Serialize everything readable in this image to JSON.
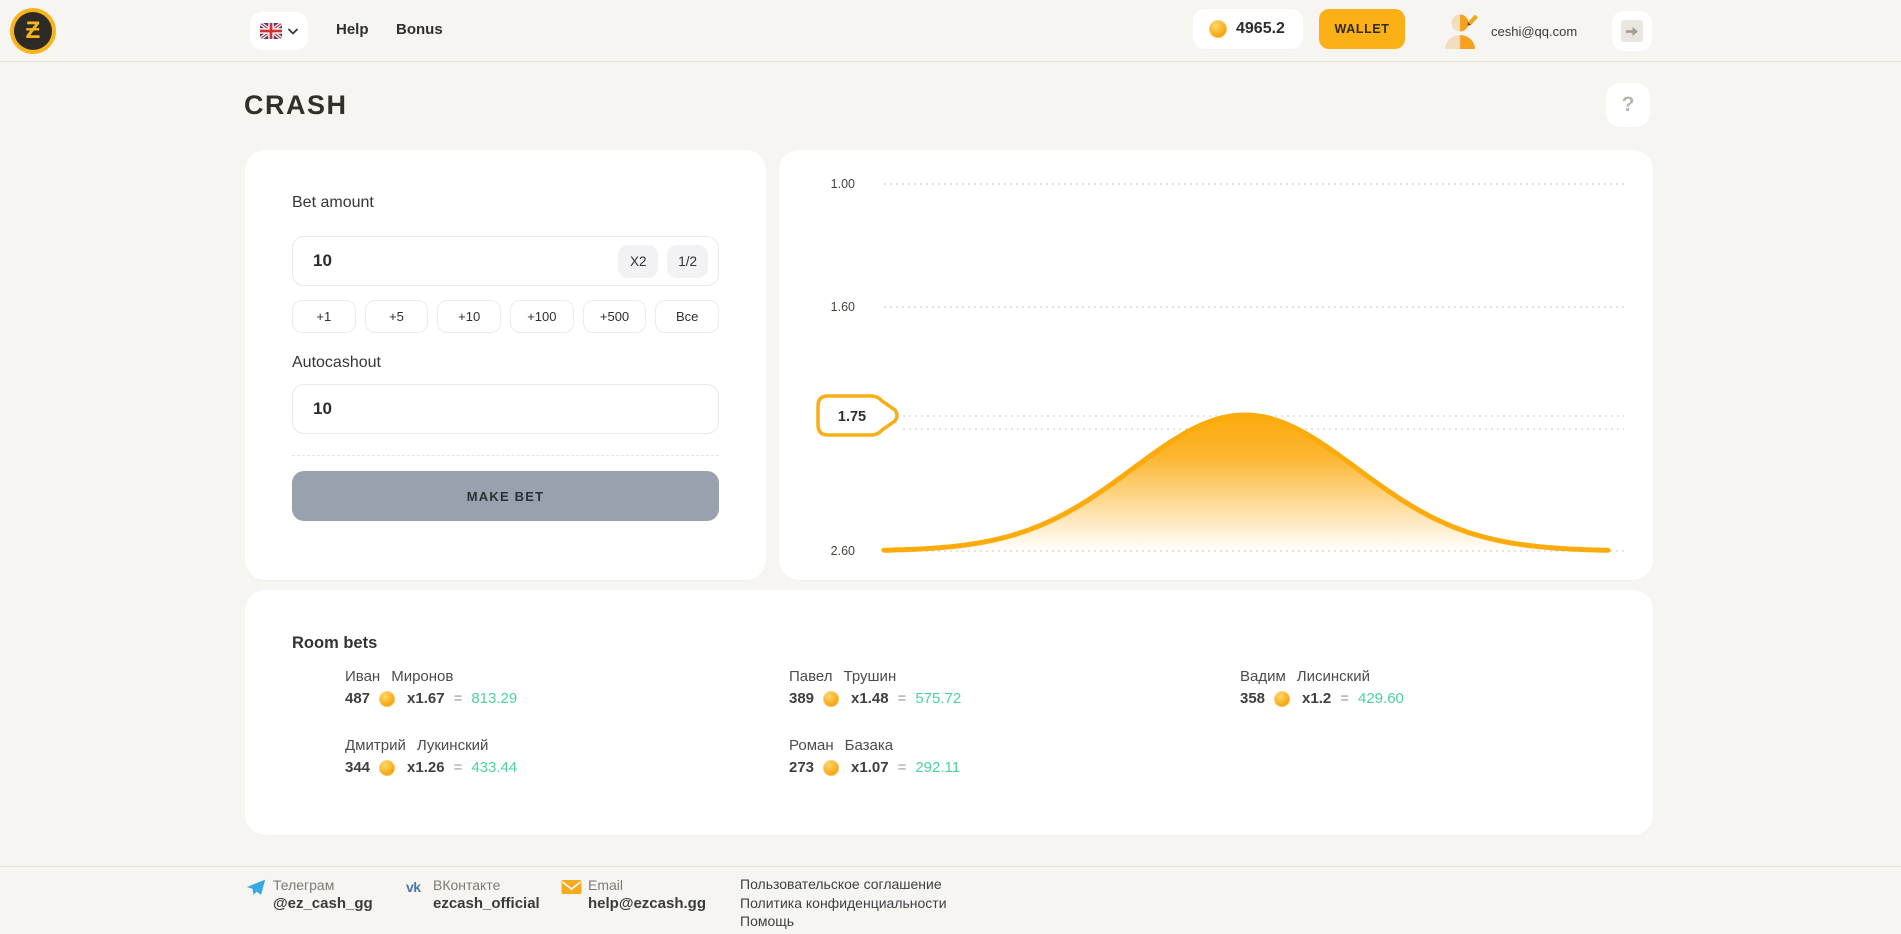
{
  "header": {
    "logo_glyph": "Ƶ",
    "nav": {
      "help": "Help",
      "bonus": "Bonus"
    },
    "balance": {
      "amount": "4965.2"
    },
    "wallet_button": "WALLET",
    "user": {
      "email": "ceshi@qq.com"
    }
  },
  "page": {
    "title": "CRASH",
    "help_button": "?"
  },
  "bet_panel": {
    "bet_amount_label": "Bet amount",
    "bet_amount_value": "10",
    "multiplier_chips": [
      "X2",
      "1/2"
    ],
    "quick_add_buttons": [
      "+1",
      "+5",
      "+10",
      "+100",
      "+500",
      "Все"
    ],
    "autocashout_label": "Autocashout",
    "autocashout_value": "10",
    "make_bet_button": "MAKE BET"
  },
  "chart_data": {
    "type": "area",
    "curve_shape": "bell",
    "y_axis": {
      "ticks": [
        "1.00",
        "1.60",
        "2.60"
      ],
      "range": [
        1.0,
        2.6
      ],
      "inverted": true
    },
    "marker": {
      "label": "1.75",
      "value": 1.75
    },
    "grid": "dotted",
    "series_color": "#FBAB0C",
    "description": "Bell-shaped multiplier curve peaking at the 1.75 marker line, baseline at 2.60"
  },
  "room_bets": {
    "title": "Room bets",
    "equals_sign": "=",
    "bets": [
      {
        "first_name": "Иван",
        "last_name": "Миронов",
        "amount": "487",
        "multiplier": "x1.67",
        "result": "813.29"
      },
      {
        "first_name": "Павел",
        "last_name": "Трушин",
        "amount": "389",
        "multiplier": "x1.48",
        "result": "575.72"
      },
      {
        "first_name": "Вадим",
        "last_name": "Лисинский",
        "amount": "358",
        "multiplier": "x1.2",
        "result": "429.60"
      },
      {
        "first_name": "Дмитрий",
        "last_name": "Лукинский",
        "amount": "344",
        "multiplier": "x1.26",
        "result": "433.44"
      },
      {
        "first_name": "Роман",
        "last_name": "Базака",
        "amount": "273",
        "multiplier": "x1.07",
        "result": "292.11"
      }
    ]
  },
  "footer": {
    "socials": [
      {
        "network": "Телеграм",
        "handle": "@ez_cash_gg"
      },
      {
        "network": "ВКонтакте",
        "handle": "ezcash_official"
      },
      {
        "network": "Email",
        "handle": "help@ezcash.gg"
      }
    ],
    "links": [
      "Пользовательское соглашение",
      "Политика конфиденциальности",
      "Помощь"
    ]
  },
  "colors": {
    "accent_yellow": "#FBB016",
    "chart_orange": "#FBAB0C",
    "result_green": "#4FD19C",
    "make_bet_gray": "#99A1AE",
    "telegram_blue": "#37A8E6",
    "vk_blue": "#4B76A9",
    "background": "#F7F5F2"
  }
}
